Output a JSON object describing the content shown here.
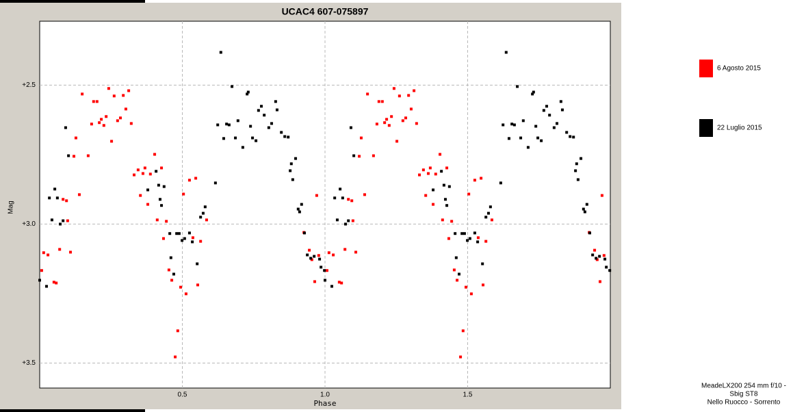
{
  "chart_data": {
    "type": "scatter",
    "title": "UCAC4 607-075897",
    "x_label": "Phase",
    "y_label": "Mag",
    "xlim": [
      0,
      2
    ],
    "xticks": [
      0.5,
      {
        "value": 1,
        "label": "1.0"
      },
      1.5
    ],
    "ylim": [
      3.59,
      2.27
    ],
    "yticks": [
      {
        "value": 2.5,
        "label": "+2.5"
      },
      {
        "value": 3,
        "label": "+3.0"
      },
      {
        "value": 3.5,
        "label": "+3.5"
      }
    ],
    "grid": true,
    "legend": "right",
    "series": [
      {
        "name": "6 Agosto 2015",
        "color": "#ff0000",
        "x": [
          0.007,
          0.014,
          0.029,
          0.05,
          0.058,
          0.07,
          0.082,
          0.094,
          0.098,
          0.108,
          0.12,
          0.127,
          0.139,
          0.149,
          0.17,
          0.182,
          0.189,
          0.201,
          0.209,
          0.216,
          0.225,
          0.233,
          0.242,
          0.252,
          0.261,
          0.273,
          0.283,
          0.293,
          0.302,
          0.312,
          0.321,
          0.331,
          0.345,
          0.353,
          0.362,
          0.369,
          0.379,
          0.388,
          0.403,
          0.412,
          0.427,
          0.434,
          0.444,
          0.453,
          0.463,
          0.475,
          0.484,
          0.494,
          0.504,
          0.513,
          0.525,
          0.537,
          0.547,
          0.554,
          0.564,
          0.585,
          0.926,
          0.945,
          0.954,
          0.964,
          0.971,
          0.978,
          1.007,
          1.014,
          1.029,
          1.05,
          1.058,
          1.07,
          1.082,
          1.094,
          1.098,
          1.108,
          1.12,
          1.127,
          1.139,
          1.149,
          1.17,
          1.182,
          1.189,
          1.201,
          1.209,
          1.216,
          1.225,
          1.233,
          1.242,
          1.252,
          1.261,
          1.273,
          1.283,
          1.293,
          1.302,
          1.312,
          1.321,
          1.331,
          1.345,
          1.353,
          1.362,
          1.369,
          1.379,
          1.388,
          1.403,
          1.412,
          1.427,
          1.434,
          1.444,
          1.453,
          1.463,
          1.475,
          1.484,
          1.494,
          1.504,
          1.513,
          1.525,
          1.537,
          1.547,
          1.554,
          1.564,
          1.585,
          1.926,
          1.945,
          1.954,
          1.964,
          1.971,
          1.978
        ],
        "values": [
          3.167,
          3.103,
          3.111,
          3.209,
          3.212,
          3.091,
          2.911,
          2.916,
          2.988,
          3.101,
          2.756,
          2.69,
          2.894,
          2.532,
          2.754,
          2.64,
          2.559,
          2.559,
          2.635,
          2.623,
          2.645,
          2.613,
          2.512,
          2.702,
          2.539,
          2.628,
          2.618,
          2.537,
          2.586,
          2.52,
          2.638,
          2.823,
          2.805,
          2.897,
          2.818,
          2.798,
          2.929,
          2.82,
          2.749,
          2.985,
          2.798,
          3.052,
          2.99,
          3.165,
          3.202,
          3.478,
          3.384,
          3.227,
          2.892,
          3.251,
          2.842,
          3.049,
          2.835,
          3.219,
          3.062,
          2.985,
          3.03,
          3.094,
          3.128,
          3.207,
          2.897,
          3.113,
          3.167,
          3.103,
          3.111,
          3.209,
          3.212,
          3.091,
          2.911,
          2.916,
          2.988,
          3.101,
          2.756,
          2.69,
          2.894,
          2.532,
          2.754,
          2.64,
          2.559,
          2.559,
          2.635,
          2.623,
          2.645,
          2.613,
          2.512,
          2.702,
          2.539,
          2.628,
          2.618,
          2.537,
          2.586,
          2.52,
          2.638,
          2.823,
          2.805,
          2.897,
          2.818,
          2.798,
          2.929,
          2.82,
          2.749,
          2.985,
          2.798,
          3.052,
          2.99,
          3.165,
          3.202,
          3.478,
          3.384,
          3.227,
          2.892,
          3.251,
          2.842,
          3.049,
          2.835,
          3.219,
          3.062,
          2.985,
          3.03,
          3.094,
          3.128,
          3.207,
          2.897,
          3.113
        ]
      },
      {
        "name": "22 Luglio 2015",
        "color": "#000000",
        "x": [
          0.0,
          0.024,
          0.034,
          0.043,
          0.053,
          0.062,
          0.072,
          0.082,
          0.091,
          0.101,
          0.379,
          0.408,
          0.417,
          0.422,
          0.427,
          0.436,
          0.456,
          0.46,
          0.47,
          0.48,
          0.489,
          0.499,
          0.508,
          0.525,
          0.535,
          0.552,
          0.564,
          0.573,
          0.58,
          0.616,
          0.624,
          0.635,
          0.645,
          0.655,
          0.664,
          0.674,
          0.686,
          0.695,
          0.712,
          0.727,
          0.731,
          0.739,
          0.746,
          0.758,
          0.767,
          0.777,
          0.787,
          0.803,
          0.813,
          0.827,
          0.832,
          0.847,
          0.859,
          0.871,
          0.878,
          0.882,
          0.887,
          0.897,
          0.906,
          0.911,
          0.918,
          0.928,
          0.938,
          0.95,
          0.962,
          0.981,
          0.986,
          0.998,
          1.0,
          1.024,
          1.034,
          1.043,
          1.053,
          1.062,
          1.072,
          1.082,
          1.091,
          1.101,
          1.379,
          1.408,
          1.417,
          1.422,
          1.427,
          1.436,
          1.456,
          1.46,
          1.47,
          1.48,
          1.489,
          1.499,
          1.508,
          1.525,
          1.535,
          1.552,
          1.564,
          1.573,
          1.58,
          1.616,
          1.624,
          1.635,
          1.645,
          1.655,
          1.664,
          1.674,
          1.686,
          1.695,
          1.712,
          1.727,
          1.731,
          1.739,
          1.746,
          1.758,
          1.767,
          1.777,
          1.787,
          1.803,
          1.813,
          1.827,
          1.832,
          1.847,
          1.859,
          1.871,
          1.878,
          1.882,
          1.887,
          1.897,
          1.906,
          1.911,
          1.918,
          1.928,
          1.938,
          1.95,
          1.962,
          1.981,
          1.986,
          1.998
        ],
        "values": [
          3.202,
          3.224,
          2.906,
          2.985,
          2.874,
          2.906,
          3.0,
          2.988,
          2.653,
          2.754,
          2.877,
          2.81,
          2.86,
          2.911,
          2.933,
          2.865,
          3.034,
          3.121,
          3.18,
          3.034,
          3.034,
          3.059,
          3.052,
          3.032,
          3.064,
          3.143,
          2.975,
          2.961,
          2.938,
          2.852,
          2.643,
          2.382,
          2.692,
          2.64,
          2.643,
          2.505,
          2.69,
          2.628,
          2.724,
          2.532,
          2.525,
          2.648,
          2.69,
          2.7,
          2.591,
          2.576,
          2.608,
          2.653,
          2.638,
          2.559,
          2.589,
          2.67,
          2.685,
          2.687,
          2.808,
          2.783,
          2.84,
          2.764,
          2.946,
          2.956,
          2.929,
          3.032,
          3.111,
          3.123,
          3.116,
          3.126,
          3.155,
          3.167,
          3.202,
          3.224,
          2.906,
          2.985,
          2.874,
          2.906,
          3.0,
          2.988,
          2.653,
          2.754,
          2.877,
          2.81,
          2.86,
          2.911,
          2.933,
          2.865,
          3.034,
          3.121,
          3.18,
          3.034,
          3.034,
          3.059,
          3.052,
          3.032,
          3.064,
          3.143,
          2.975,
          2.961,
          2.938,
          2.852,
          2.643,
          2.382,
          2.692,
          2.64,
          2.643,
          2.505,
          2.69,
          2.628,
          2.724,
          2.532,
          2.525,
          2.648,
          2.69,
          2.7,
          2.591,
          2.576,
          2.608,
          2.653,
          2.638,
          2.559,
          2.589,
          2.67,
          2.685,
          2.687,
          2.808,
          2.783,
          2.84,
          2.764,
          2.946,
          2.956,
          2.929,
          3.032,
          3.111,
          3.123,
          3.116,
          3.126,
          3.155,
          3.167
        ]
      }
    ],
    "annotations": [
      "MeadeLX200 254 mm f/10 -",
      "Sbig ST8",
      "Nello Ruocco - Sorrento"
    ]
  }
}
